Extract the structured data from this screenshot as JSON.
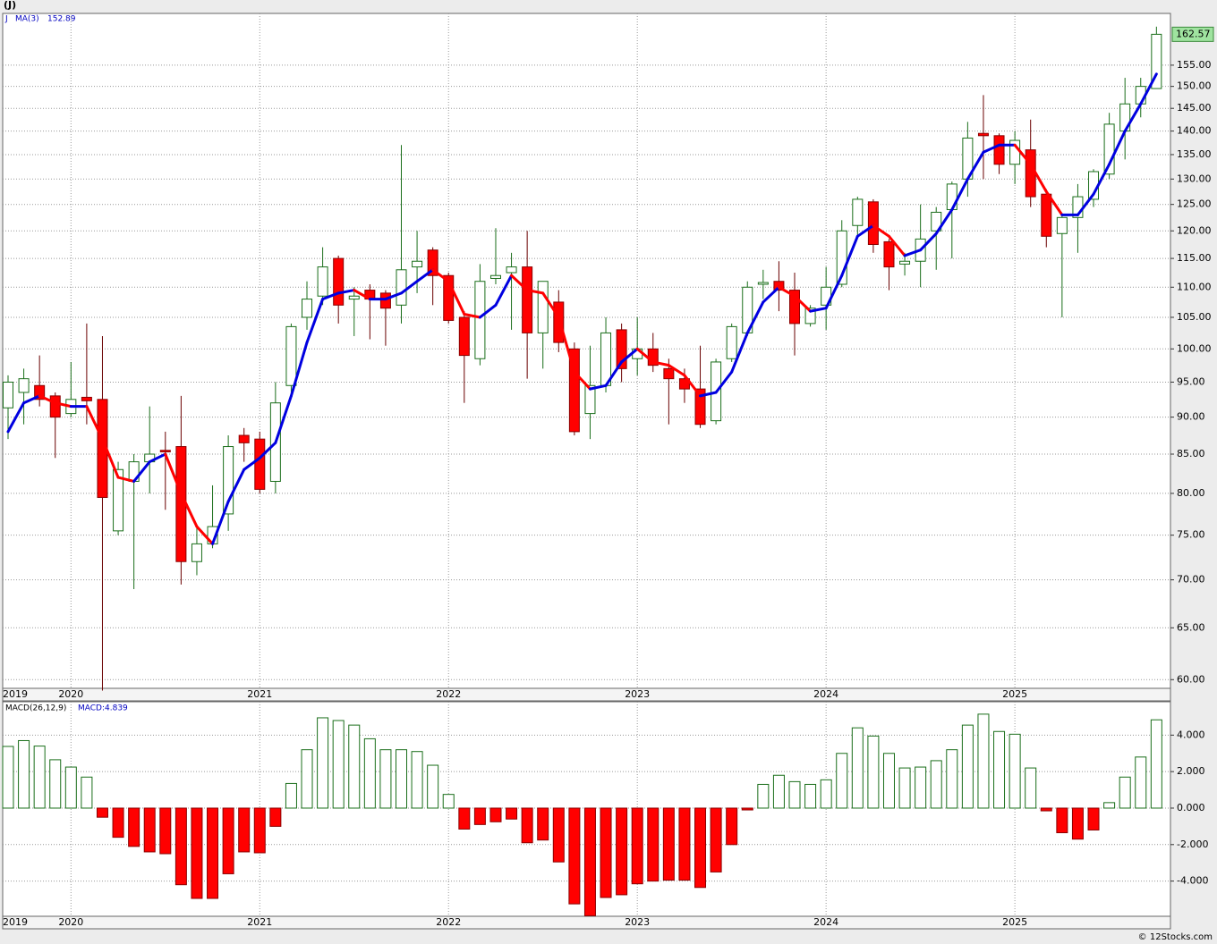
{
  "chart_data": {
    "type": "candlestick",
    "ticker": "(J)",
    "symbol": "J",
    "ma_name": "MA(3)",
    "macd_name": "MACD(26,12,9)",
    "macd_value_label": "MACD:4.839",
    "footer": "© 12Stocks.com",
    "log_scale": true,
    "grid": true,
    "up_color": "#1a6e1a",
    "down_color": "#ff0000",
    "ma_up_color": "#0000e0",
    "ma_down_color": "#ff0000",
    "x": [
      "2019-09",
      "2019-10",
      "2019-11",
      "2019-12",
      "2020-01",
      "2020-02",
      "2020-03",
      "2020-04",
      "2020-05",
      "2020-06",
      "2020-07",
      "2020-08",
      "2020-09",
      "2020-10",
      "2020-11",
      "2020-12",
      "2021-01",
      "2021-02",
      "2021-03",
      "2021-04",
      "2021-05",
      "2021-06",
      "2021-07",
      "2021-08",
      "2021-09",
      "2021-10",
      "2021-11",
      "2021-12",
      "2022-01",
      "2022-02",
      "2022-03",
      "2022-04",
      "2022-05",
      "2022-06",
      "2022-07",
      "2022-08",
      "2022-09",
      "2022-10",
      "2022-11",
      "2022-12",
      "2023-01",
      "2023-02",
      "2023-03",
      "2023-04",
      "2023-05",
      "2023-06",
      "2023-07",
      "2023-08",
      "2023-09",
      "2023-10",
      "2023-11",
      "2023-12",
      "2024-01",
      "2024-02",
      "2024-03",
      "2024-04",
      "2024-05",
      "2024-06",
      "2024-07",
      "2024-08",
      "2024-09",
      "2024-10",
      "2024-11",
      "2024-12",
      "2025-01",
      "2025-02",
      "2025-03",
      "2025-04",
      "2025-05",
      "2025-06",
      "2025-07",
      "2025-08",
      "2025-09",
      "2025-10"
    ],
    "open": [
      91.3,
      93.5,
      94.5,
      93,
      90.5,
      92.8,
      92.5,
      75.5,
      81.5,
      84,
      85.5,
      86,
      72,
      74,
      77.5,
      87.5,
      87,
      81.5,
      94.5,
      105,
      108.5,
      115,
      108,
      109.5,
      109,
      107,
      113.5,
      116.5,
      112,
      105,
      98.5,
      111.5,
      112.5,
      113.5,
      102.5,
      107.5,
      100,
      90.5,
      94.5,
      103,
      98.5,
      100,
      97,
      95.5,
      94,
      89.5,
      98.5,
      102.5,
      110.5,
      111,
      109.5,
      104,
      107,
      110.5,
      121,
      125.5,
      118,
      114,
      114.5,
      120,
      124,
      130,
      139.5,
      139,
      133,
      136,
      127,
      119.5,
      122.5,
      126,
      131,
      140,
      146,
      149.5
    ],
    "high": [
      96,
      97,
      99,
      93.5,
      98,
      104,
      102,
      84,
      85,
      91.5,
      88,
      93,
      76,
      81,
      87.5,
      88.5,
      88,
      95,
      104,
      111,
      117,
      115.5,
      110,
      110.5,
      109.5,
      137,
      120,
      117,
      112.5,
      106,
      114,
      120.5,
      116,
      120,
      111,
      109.5,
      101,
      100.5,
      105,
      104,
      105,
      102.5,
      98.5,
      97,
      100.5,
      98.5,
      104,
      111,
      113,
      114.5,
      112.5,
      107,
      113.5,
      122,
      126.5,
      126,
      118.5,
      116,
      125,
      124.5,
      129.5,
      142,
      148,
      139.5,
      140,
      142.5,
      128,
      123,
      129,
      132,
      144,
      152,
      152,
      164.5
    ],
    "low": [
      87,
      89,
      91.5,
      84.5,
      90,
      89,
      59,
      75,
      69,
      80,
      78,
      69.5,
      70.5,
      73.5,
      75.5,
      84,
      80,
      80,
      93,
      103,
      107,
      104,
      102,
      101.5,
      100.5,
      104,
      109,
      107,
      104,
      92,
      97.5,
      110.5,
      103,
      95.5,
      97,
      99.5,
      87.5,
      87,
      93.5,
      95,
      96,
      96.5,
      89,
      92,
      88.5,
      89,
      98,
      102,
      108,
      106,
      99,
      103.5,
      103,
      110,
      119,
      116,
      109.5,
      112,
      110,
      113,
      115,
      126.5,
      130,
      131,
      129,
      124.5,
      117,
      105,
      116,
      124.5,
      130,
      134,
      143,
      149.5
    ],
    "close": [
      95,
      95.5,
      92.5,
      90,
      92.5,
      92.3,
      79.5,
      83,
      84,
      85,
      85.3,
      72,
      74,
      76,
      86,
      86.5,
      80.5,
      92,
      103.5,
      108,
      113.5,
      107,
      108.5,
      108,
      106.5,
      113,
      114.5,
      112,
      104.5,
      99,
      111,
      112,
      113.5,
      102.5,
      111,
      101,
      88,
      94.5,
      102.5,
      97,
      100,
      97.5,
      95.5,
      94,
      89,
      98,
      103.5,
      110,
      110.8,
      109.5,
      104,
      106.5,
      110,
      120,
      126,
      117.5,
      113.5,
      114.5,
      118.5,
      123.5,
      129,
      138.5,
      139,
      133,
      138,
      126.5,
      119,
      122.5,
      126.5,
      131.5,
      141.5,
      146,
      150,
      162.57
    ],
    "ma": [
      88,
      92,
      93,
      92,
      91.5,
      91.5,
      87,
      82,
      81.5,
      84,
      85,
      80,
      76,
      74,
      79,
      83,
      84.5,
      86.5,
      93,
      101,
      108,
      109,
      109.5,
      108,
      108,
      109,
      111,
      113,
      111,
      105.5,
      105,
      107,
      112,
      109.5,
      109,
      105,
      96.5,
      94,
      94.5,
      98,
      100,
      98,
      97.5,
      96,
      93,
      93.5,
      96.5,
      102.5,
      107.5,
      110,
      108.5,
      106,
      106.5,
      112,
      119,
      121,
      119,
      115.5,
      116.5,
      119.5,
      124,
      130,
      135.5,
      137,
      137,
      133,
      127.5,
      123,
      123,
      127,
      133,
      140,
      146,
      152.89
    ],
    "macd": [
      3.38,
      3.7,
      3.4,
      2.65,
      2.25,
      1.7,
      -0.5,
      -1.6,
      -2.1,
      -2.4,
      -2.5,
      -4.2,
      -4.95,
      -4.95,
      -3.6,
      -2.4,
      -2.45,
      -1.0,
      1.35,
      3.2,
      4.95,
      4.8,
      4.55,
      3.8,
      3.2,
      3.2,
      3.1,
      2.35,
      0.75,
      -1.15,
      -0.9,
      -0.75,
      -0.6,
      -1.9,
      -1.75,
      -2.95,
      -5.25,
      -5.9,
      -4.9,
      -4.75,
      -4.15,
      -4.0,
      -3.95,
      -3.95,
      -4.35,
      -3.5,
      -2.0,
      -0.1,
      1.3,
      1.8,
      1.45,
      1.3,
      1.55,
      3.0,
      4.4,
      3.95,
      3.0,
      2.2,
      2.25,
      2.6,
      3.2,
      4.55,
      5.15,
      4.2,
      4.05,
      2.2,
      -0.15,
      -1.35,
      -1.7,
      -1.2,
      0.3,
      1.7,
      2.8,
      4.839
    ],
    "xticks": [
      {
        "value": "2019-09",
        "label": "2019"
      },
      {
        "value": "2020-01",
        "label": "2020"
      },
      {
        "value": "2021-01",
        "label": "2021"
      },
      {
        "value": "2022-01",
        "label": "2022"
      },
      {
        "value": "2023-01",
        "label": "2023"
      },
      {
        "value": "2024-01",
        "label": "2024"
      },
      {
        "value": "2025-01",
        "label": "2025"
      }
    ],
    "ylim": [
      59.2,
      167.9
    ],
    "yticks": [
      {
        "value": 60,
        "label": "60.00"
      },
      {
        "value": 65,
        "label": "65.00"
      },
      {
        "value": 70,
        "label": "70.00"
      },
      {
        "value": 75,
        "label": "75.00"
      },
      {
        "value": 80,
        "label": "80.00"
      },
      {
        "value": 85,
        "label": "85.00"
      },
      {
        "value": 90,
        "label": "90.00"
      },
      {
        "value": 95,
        "label": "95.00"
      },
      {
        "value": 100,
        "label": "100.00"
      },
      {
        "value": 105,
        "label": "105.00"
      },
      {
        "value": 110,
        "label": "110.00"
      },
      {
        "value": 115,
        "label": "115.00"
      },
      {
        "value": 120,
        "label": "120.00"
      },
      {
        "value": 125,
        "label": "125.00"
      },
      {
        "value": 130,
        "label": "130.00"
      },
      {
        "value": 135,
        "label": "135.00"
      },
      {
        "value": 140,
        "label": "140.00"
      },
      {
        "value": 145,
        "label": "145.00"
      },
      {
        "value": 150,
        "label": "150.00"
      },
      {
        "value": 155,
        "label": "155.00"
      }
    ],
    "y2lim": [
      -5.93,
      5.83
    ],
    "y2ticks": [
      {
        "value": 4,
        "label": "4.000"
      },
      {
        "value": 2,
        "label": "2.000"
      },
      {
        "value": 0,
        "label": "0.000"
      },
      {
        "value": -2,
        "label": "-2.000"
      },
      {
        "value": -4,
        "label": "-4.000"
      }
    ]
  }
}
